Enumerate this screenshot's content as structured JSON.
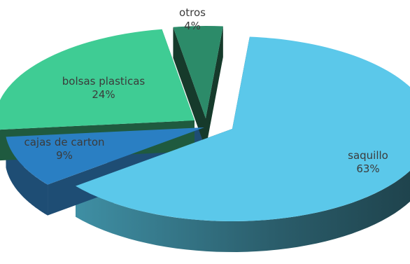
{
  "chart_data": {
    "type": "pie",
    "style": "3d-exploded",
    "slices": [
      {
        "label": "saquillo",
        "value": 63,
        "percent_label": "63%",
        "color": "#5bc8ea",
        "side_color": "#27515d"
      },
      {
        "label": "cajas de carton",
        "value": 9,
        "percent_label": "9%",
        "color": "#2a7fc3",
        "side_color": "#1e4d74"
      },
      {
        "label": "bolsas plasticas",
        "value": 24,
        "percent_label": "24%",
        "color": "#3fcc94",
        "side_color": "#1f5a3f"
      },
      {
        "label": "otros",
        "value": 4,
        "percent_label": "4%",
        "color": "#2c8b69",
        "side_color": "#163a2b"
      }
    ]
  }
}
